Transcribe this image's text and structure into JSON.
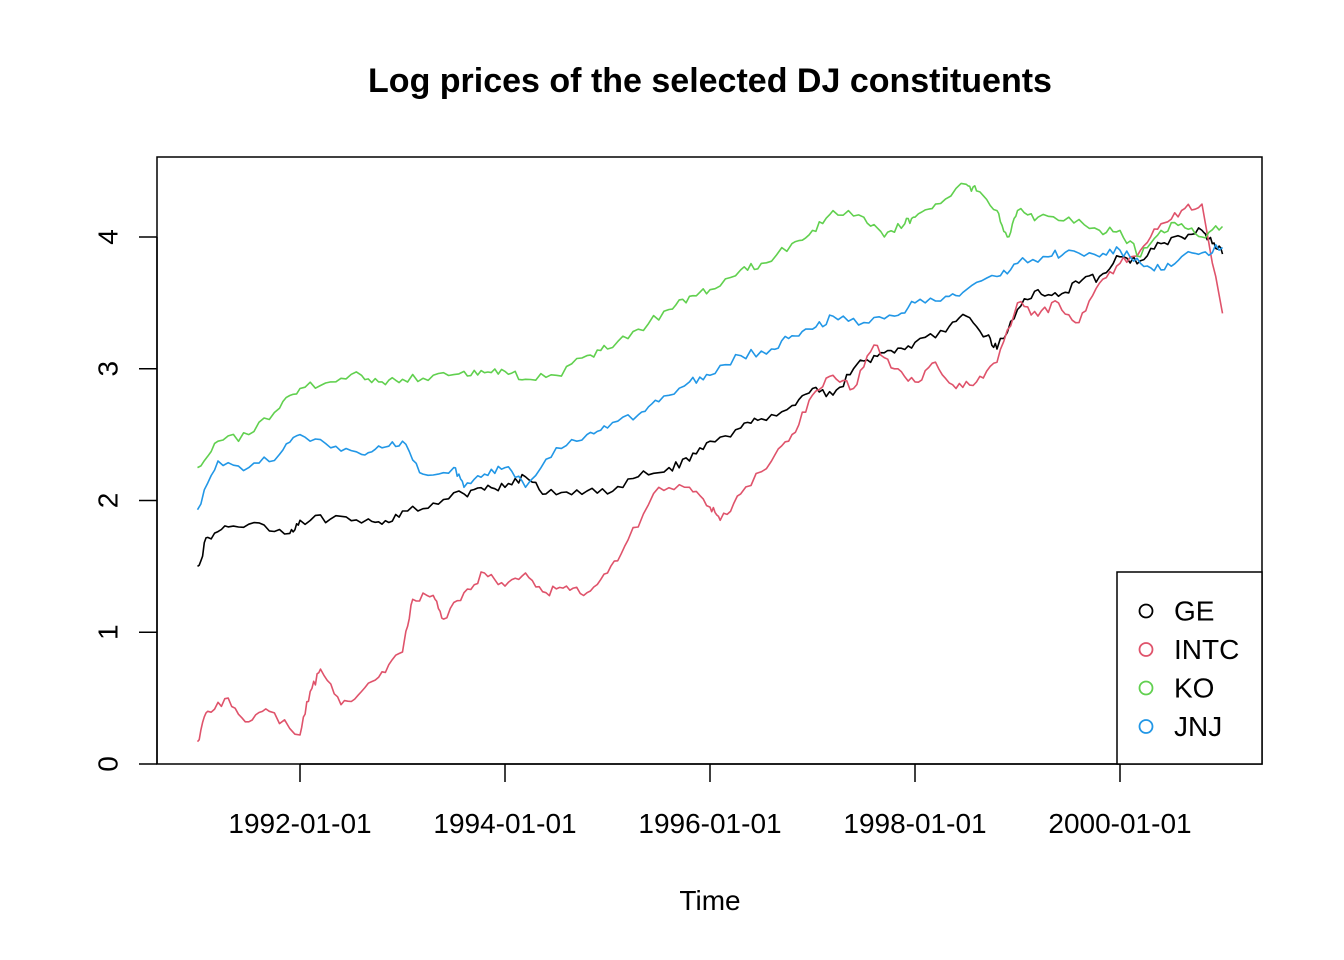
{
  "chart_data": {
    "type": "line",
    "title": "Log prices of the selected DJ constituents",
    "xlabel": "Time",
    "ylabel": "",
    "xlim": [
      1990.8,
      2001.6
    ],
    "ylim": [
      0,
      4.6
    ],
    "x_ticks": [
      {
        "value": 1992,
        "label": "1992-01-01"
      },
      {
        "value": 1994,
        "label": "1994-01-01"
      },
      {
        "value": 1996,
        "label": "1996-01-01"
      },
      {
        "value": 1998,
        "label": "1998-01-01"
      },
      {
        "value": 2000,
        "label": "2000-01-01"
      }
    ],
    "y_ticks": [
      {
        "value": 0,
        "label": "0"
      },
      {
        "value": 1,
        "label": "1"
      },
      {
        "value": 2,
        "label": "2"
      },
      {
        "value": 3,
        "label": "3"
      },
      {
        "value": 4,
        "label": "4"
      }
    ],
    "legend_position": "bottom-right",
    "series": [
      {
        "name": "GE",
        "color": "#000000",
        "x": [
          1991.0,
          1991.1,
          1991.3,
          1991.6,
          1991.9,
          1992.0,
          1992.3,
          1992.6,
          1992.8,
          1993.0,
          1993.3,
          1993.6,
          1993.8,
          1994.0,
          1994.2,
          1994.4,
          1994.7,
          1995.0,
          1995.3,
          1995.6,
          1995.8,
          1996.0,
          1996.3,
          1996.5,
          1996.8,
          1997.0,
          1997.2,
          1997.4,
          1997.6,
          1997.8,
          1998.0,
          1998.3,
          1998.5,
          1998.7,
          1998.8,
          1999.0,
          1999.2,
          1999.4,
          1999.6,
          1999.8,
          2000.0,
          2000.2,
          2000.4,
          2000.6,
          2000.8,
          2000.9,
          2001.0
        ],
        "values": [
          1.5,
          1.72,
          1.8,
          1.83,
          1.75,
          1.85,
          1.86,
          1.83,
          1.82,
          1.92,
          1.98,
          2.05,
          2.08,
          2.1,
          2.18,
          2.05,
          2.08,
          2.05,
          2.18,
          2.25,
          2.3,
          2.45,
          2.55,
          2.62,
          2.72,
          2.85,
          2.8,
          3.0,
          3.1,
          3.12,
          3.2,
          3.28,
          3.4,
          3.25,
          3.15,
          3.45,
          3.6,
          3.55,
          3.65,
          3.7,
          3.85,
          3.82,
          3.95,
          4.0,
          4.05,
          3.95,
          3.87
        ]
      },
      {
        "name": "INTC",
        "color": "#DF536B",
        "x": [
          1991.0,
          1991.1,
          1991.3,
          1991.5,
          1991.7,
          1992.0,
          1992.1,
          1992.2,
          1992.4,
          1992.6,
          1992.8,
          1993.0,
          1993.1,
          1993.3,
          1993.4,
          1993.6,
          1993.8,
          1994.0,
          1994.2,
          1994.4,
          1994.6,
          1994.8,
          1995.0,
          1995.2,
          1995.5,
          1995.8,
          1996.0,
          1996.1,
          1996.3,
          1996.6,
          1996.8,
          1997.0,
          1997.2,
          1997.4,
          1997.6,
          1997.8,
          1998.0,
          1998.2,
          1998.4,
          1998.6,
          1998.8,
          1999.0,
          1999.2,
          1999.4,
          1999.6,
          1999.8,
          2000.0,
          2000.2,
          2000.4,
          2000.6,
          2000.8,
          2001.0
        ],
        "values": [
          0.17,
          0.4,
          0.5,
          0.32,
          0.4,
          0.22,
          0.55,
          0.72,
          0.45,
          0.55,
          0.7,
          0.85,
          1.25,
          1.28,
          1.1,
          1.3,
          1.45,
          1.35,
          1.45,
          1.3,
          1.35,
          1.3,
          1.45,
          1.7,
          2.1,
          2.1,
          1.95,
          1.85,
          2.05,
          2.3,
          2.5,
          2.8,
          2.95,
          2.85,
          3.18,
          3.0,
          2.9,
          3.05,
          2.85,
          2.9,
          3.05,
          3.5,
          3.4,
          3.5,
          3.35,
          3.65,
          3.8,
          3.9,
          4.1,
          4.2,
          4.25,
          3.42
        ]
      },
      {
        "name": "KO",
        "color": "#61D04F",
        "x": [
          1991.0,
          1991.2,
          1991.5,
          1991.8,
          1992.0,
          1992.3,
          1992.6,
          1992.8,
          1993.0,
          1993.3,
          1993.6,
          1993.8,
          1994.0,
          1994.2,
          1994.5,
          1994.8,
          1995.0,
          1995.3,
          1995.6,
          1995.8,
          1996.0,
          1996.3,
          1996.5,
          1996.8,
          1997.0,
          1997.2,
          1997.5,
          1997.7,
          1997.9,
          1998.0,
          1998.2,
          1998.5,
          1998.6,
          1998.8,
          1998.9,
          1999.0,
          1999.2,
          1999.5,
          1999.8,
          2000.0,
          2000.2,
          2000.4,
          2000.6,
          2000.8,
          2001.0
        ],
        "values": [
          2.25,
          2.45,
          2.5,
          2.7,
          2.85,
          2.9,
          2.95,
          2.9,
          2.92,
          2.95,
          2.98,
          2.97,
          2.98,
          2.92,
          2.95,
          3.1,
          3.15,
          3.3,
          3.45,
          3.55,
          3.6,
          3.75,
          3.8,
          3.95,
          4.05,
          4.2,
          4.15,
          4.0,
          4.1,
          4.15,
          4.25,
          4.4,
          4.35,
          4.2,
          4.0,
          4.2,
          4.15,
          4.15,
          4.05,
          4.05,
          3.85,
          4.05,
          4.1,
          4.0,
          4.08
        ]
      },
      {
        "name": "JNJ",
        "color": "#2297E6",
        "x": [
          1991.0,
          1991.2,
          1991.5,
          1991.8,
          1992.0,
          1992.3,
          1992.6,
          1992.8,
          1993.0,
          1993.2,
          1993.5,
          1993.6,
          1993.8,
          1994.0,
          1994.2,
          1994.5,
          1994.8,
          1995.0,
          1995.3,
          1995.5,
          1995.8,
          1996.0,
          1996.3,
          1996.6,
          1996.8,
          1997.0,
          1997.2,
          1997.5,
          1997.8,
          1998.0,
          1998.3,
          1998.5,
          1998.8,
          1999.0,
          1999.3,
          1999.5,
          1999.8,
          2000.0,
          2000.2,
          2000.4,
          2000.6,
          2000.8,
          2001.0
        ],
        "values": [
          1.93,
          2.3,
          2.25,
          2.35,
          2.5,
          2.4,
          2.35,
          2.4,
          2.45,
          2.2,
          2.25,
          2.1,
          2.2,
          2.25,
          2.1,
          2.4,
          2.5,
          2.55,
          2.65,
          2.75,
          2.9,
          2.95,
          3.1,
          3.15,
          3.25,
          3.3,
          3.4,
          3.35,
          3.4,
          3.5,
          3.55,
          3.6,
          3.7,
          3.8,
          3.85,
          3.9,
          3.85,
          3.9,
          3.8,
          3.75,
          3.85,
          3.88,
          3.92
        ]
      }
    ]
  }
}
